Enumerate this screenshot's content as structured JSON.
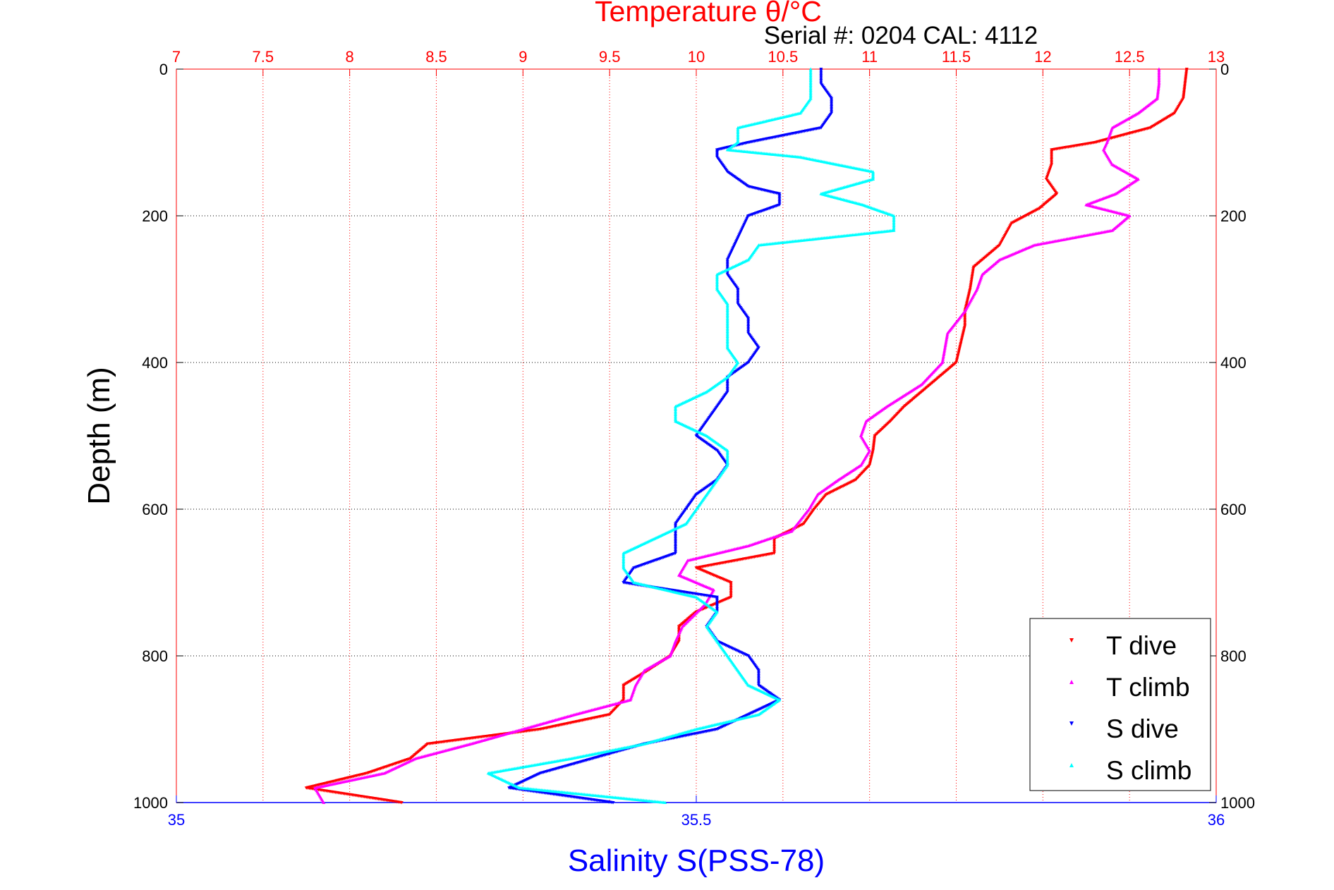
{
  "chart_data": {
    "type": "scatter",
    "title_top": "Temperature θ/°C",
    "subtitle": "Serial #: 0204  CAL: 4112",
    "xlabel_bottom": "Salinity S(PSS-78)",
    "ylabel": "Depth (m)",
    "y_axis": {
      "range": [
        0,
        1000
      ],
      "inverted": true,
      "ticks": [
        "0",
        "200",
        "400",
        "600",
        "800",
        "1000"
      ],
      "tick_values": [
        0,
        200,
        400,
        600,
        800,
        1000
      ]
    },
    "x_top_axis": {
      "range": [
        7,
        13
      ],
      "ticks": [
        "7",
        "7.5",
        "8",
        "8.5",
        "9",
        "9.5",
        "10",
        "10.5",
        "11",
        "11.5",
        "12",
        "12.5",
        "13"
      ],
      "tick_values": [
        7,
        7.5,
        8,
        8.5,
        9,
        9.5,
        10,
        10.5,
        11,
        11.5,
        12,
        12.5,
        13
      ]
    },
    "x_bottom_axis": {
      "range": [
        35,
        36
      ],
      "ticks": [
        "35",
        "35.5",
        "36"
      ],
      "tick_values": [
        35,
        35.5,
        36
      ]
    },
    "grid": true,
    "legend_position": "bottom-right",
    "colors": {
      "t_dive": "#ff0000",
      "t_climb": "#ff00ff",
      "s_dive": "#0000ff",
      "s_climb": "#00ffff",
      "temp_axis": "#ff0000",
      "sal_axis": "#0000ff"
    },
    "series": [
      {
        "name": "T dive",
        "axis": "temperature",
        "color": "#ff0000",
        "marker": "triangle-down",
        "points": [
          [
            0,
            12.83
          ],
          [
            20,
            12.82
          ],
          [
            40,
            12.81
          ],
          [
            60,
            12.76
          ],
          [
            80,
            12.62
          ],
          [
            100,
            12.3
          ],
          [
            110,
            12.05
          ],
          [
            130,
            12.05
          ],
          [
            150,
            12.02
          ],
          [
            170,
            12.08
          ],
          [
            190,
            11.98
          ],
          [
            210,
            11.82
          ],
          [
            240,
            11.75
          ],
          [
            270,
            11.6
          ],
          [
            300,
            11.58
          ],
          [
            330,
            11.55
          ],
          [
            350,
            11.55
          ],
          [
            380,
            11.52
          ],
          [
            400,
            11.5
          ],
          [
            420,
            11.4
          ],
          [
            440,
            11.3
          ],
          [
            460,
            11.2
          ],
          [
            480,
            11.12
          ],
          [
            500,
            11.03
          ],
          [
            520,
            11.02
          ],
          [
            540,
            11.0
          ],
          [
            560,
            10.92
          ],
          [
            580,
            10.75
          ],
          [
            600,
            10.68
          ],
          [
            620,
            10.62
          ],
          [
            640,
            10.45
          ],
          [
            660,
            10.45
          ],
          [
            680,
            10.0
          ],
          [
            700,
            10.2
          ],
          [
            720,
            10.2
          ],
          [
            740,
            10.0
          ],
          [
            760,
            9.9
          ],
          [
            780,
            9.9
          ],
          [
            800,
            9.85
          ],
          [
            820,
            9.72
          ],
          [
            840,
            9.58
          ],
          [
            860,
            9.58
          ],
          [
            880,
            9.5
          ],
          [
            900,
            9.1
          ],
          [
            920,
            8.45
          ],
          [
            940,
            8.35
          ],
          [
            960,
            8.1
          ],
          [
            980,
            7.75
          ],
          [
            1000,
            8.3
          ]
        ]
      },
      {
        "name": "T climb",
        "axis": "temperature",
        "color": "#ff00ff",
        "marker": "triangle-up",
        "points": [
          [
            0,
            12.67
          ],
          [
            20,
            12.67
          ],
          [
            40,
            12.66
          ],
          [
            60,
            12.55
          ],
          [
            80,
            12.4
          ],
          [
            100,
            12.37
          ],
          [
            110,
            12.35
          ],
          [
            130,
            12.4
          ],
          [
            150,
            12.55
          ],
          [
            170,
            12.42
          ],
          [
            185,
            12.25
          ],
          [
            200,
            12.5
          ],
          [
            220,
            12.4
          ],
          [
            240,
            11.95
          ],
          [
            260,
            11.75
          ],
          [
            280,
            11.65
          ],
          [
            300,
            11.62
          ],
          [
            330,
            11.55
          ],
          [
            360,
            11.45
          ],
          [
            400,
            11.42
          ],
          [
            430,
            11.3
          ],
          [
            460,
            11.1
          ],
          [
            480,
            10.98
          ],
          [
            500,
            10.95
          ],
          [
            520,
            11.0
          ],
          [
            540,
            10.95
          ],
          [
            560,
            10.82
          ],
          [
            580,
            10.7
          ],
          [
            600,
            10.65
          ],
          [
            630,
            10.55
          ],
          [
            650,
            10.3
          ],
          [
            670,
            9.95
          ],
          [
            690,
            9.9
          ],
          [
            710,
            10.1
          ],
          [
            730,
            10.05
          ],
          [
            760,
            9.92
          ],
          [
            780,
            9.88
          ],
          [
            800,
            9.85
          ],
          [
            820,
            9.7
          ],
          [
            840,
            9.65
          ],
          [
            860,
            9.62
          ],
          [
            880,
            9.3
          ],
          [
            900,
            9.0
          ],
          [
            920,
            8.7
          ],
          [
            940,
            8.38
          ],
          [
            960,
            8.2
          ],
          [
            980,
            7.8
          ],
          [
            1000,
            7.85
          ]
        ]
      },
      {
        "name": "S dive",
        "axis": "salinity",
        "color": "#0000ff",
        "marker": "triangle-down",
        "points": [
          [
            0,
            35.62
          ],
          [
            20,
            35.62
          ],
          [
            40,
            35.63
          ],
          [
            60,
            35.63
          ],
          [
            80,
            35.62
          ],
          [
            100,
            35.55
          ],
          [
            110,
            35.52
          ],
          [
            120,
            35.52
          ],
          [
            140,
            35.53
          ],
          [
            160,
            35.55
          ],
          [
            170,
            35.58
          ],
          [
            185,
            35.58
          ],
          [
            200,
            35.55
          ],
          [
            230,
            35.54
          ],
          [
            260,
            35.53
          ],
          [
            280,
            35.53
          ],
          [
            300,
            35.54
          ],
          [
            320,
            35.54
          ],
          [
            340,
            35.55
          ],
          [
            360,
            35.55
          ],
          [
            380,
            35.56
          ],
          [
            400,
            35.55
          ],
          [
            420,
            35.53
          ],
          [
            440,
            35.53
          ],
          [
            460,
            35.52
          ],
          [
            480,
            35.51
          ],
          [
            500,
            35.5
          ],
          [
            520,
            35.52
          ],
          [
            540,
            35.53
          ],
          [
            560,
            35.52
          ],
          [
            580,
            35.5
          ],
          [
            600,
            35.49
          ],
          [
            620,
            35.48
          ],
          [
            640,
            35.48
          ],
          [
            660,
            35.48
          ],
          [
            680,
            35.44
          ],
          [
            700,
            35.43
          ],
          [
            720,
            35.52
          ],
          [
            740,
            35.52
          ],
          [
            760,
            35.51
          ],
          [
            780,
            35.52
          ],
          [
            800,
            35.55
          ],
          [
            820,
            35.56
          ],
          [
            840,
            35.56
          ],
          [
            860,
            35.58
          ],
          [
            880,
            35.55
          ],
          [
            900,
            35.52
          ],
          [
            920,
            35.45
          ],
          [
            940,
            35.4
          ],
          [
            960,
            35.35
          ],
          [
            980,
            35.32
          ],
          [
            1000,
            35.42
          ]
        ]
      },
      {
        "name": "S climb",
        "axis": "salinity",
        "color": "#00ffff",
        "marker": "triangle-up",
        "points": [
          [
            0,
            35.61
          ],
          [
            20,
            35.61
          ],
          [
            40,
            35.61
          ],
          [
            60,
            35.6
          ],
          [
            80,
            35.54
          ],
          [
            100,
            35.54
          ],
          [
            110,
            35.53
          ],
          [
            120,
            35.6
          ],
          [
            140,
            35.67
          ],
          [
            150,
            35.67
          ],
          [
            170,
            35.62
          ],
          [
            185,
            35.66
          ],
          [
            200,
            35.69
          ],
          [
            220,
            35.69
          ],
          [
            240,
            35.56
          ],
          [
            260,
            35.55
          ],
          [
            280,
            35.52
          ],
          [
            300,
            35.52
          ],
          [
            320,
            35.53
          ],
          [
            340,
            35.53
          ],
          [
            360,
            35.53
          ],
          [
            380,
            35.53
          ],
          [
            400,
            35.54
          ],
          [
            420,
            35.53
          ],
          [
            440,
            35.51
          ],
          [
            460,
            35.48
          ],
          [
            480,
            35.48
          ],
          [
            500,
            35.51
          ],
          [
            520,
            35.53
          ],
          [
            540,
            35.53
          ],
          [
            560,
            35.52
          ],
          [
            580,
            35.51
          ],
          [
            600,
            35.5
          ],
          [
            620,
            35.49
          ],
          [
            640,
            35.46
          ],
          [
            660,
            35.43
          ],
          [
            680,
            35.43
          ],
          [
            700,
            35.44
          ],
          [
            720,
            35.5
          ],
          [
            740,
            35.52
          ],
          [
            760,
            35.51
          ],
          [
            780,
            35.52
          ],
          [
            800,
            35.53
          ],
          [
            820,
            35.54
          ],
          [
            840,
            35.55
          ],
          [
            860,
            35.58
          ],
          [
            880,
            35.56
          ],
          [
            900,
            35.5
          ],
          [
            920,
            35.45
          ],
          [
            940,
            35.38
          ],
          [
            960,
            35.3
          ],
          [
            980,
            35.33
          ],
          [
            1000,
            35.47
          ]
        ]
      }
    ]
  }
}
